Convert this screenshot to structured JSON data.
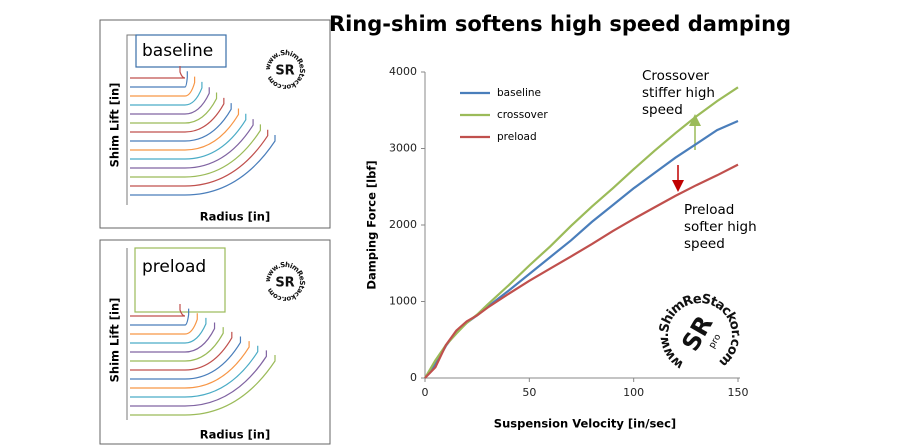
{
  "chart_data": {
    "type": "line",
    "title": "Ring-shim softens high speed damping",
    "x_label": "Suspension Velocity [in/sec]",
    "y_label": "Damping Force [lbf]",
    "x": [
      0,
      5,
      10,
      15,
      20,
      25,
      30,
      40,
      50,
      60,
      70,
      80,
      90,
      100,
      110,
      120,
      130,
      140,
      150
    ],
    "series": [
      {
        "name": "baseline",
        "color": "#4a7ebb",
        "values": [
          0,
          180,
          420,
          600,
          720,
          820,
          930,
          1140,
          1360,
          1580,
          1800,
          2040,
          2260,
          2480,
          2680,
          2880,
          3060,
          3240,
          3360
        ]
      },
      {
        "name": "crossover",
        "color": "#9bbb59",
        "values": [
          0,
          230,
          430,
          580,
          720,
          830,
          960,
          1210,
          1470,
          1720,
          1990,
          2240,
          2480,
          2730,
          2970,
          3200,
          3420,
          3620,
          3800
        ]
      },
      {
        "name": "preload",
        "color": "#c0504d",
        "values": [
          0,
          140,
          430,
          620,
          740,
          820,
          920,
          1100,
          1270,
          1430,
          1590,
          1750,
          1920,
          2080,
          2230,
          2380,
          2520,
          2650,
          2790
        ]
      }
    ],
    "xlim": [
      0,
      150
    ],
    "xticks": [
      0,
      50,
      100,
      150
    ],
    "ylim": [
      0,
      4000
    ],
    "yticks": [
      0,
      1000,
      2000,
      3000,
      4000
    ],
    "grid": false,
    "legend": "upper-left",
    "annotations": [
      {
        "text": [
          "Crossover",
          "stiffer high",
          "speed"
        ]
      },
      {
        "text": [
          "Preload",
          "softer high",
          "speed"
        ]
      }
    ]
  },
  "insets": [
    {
      "label": "baseline",
      "y_label": "Shim Lift [in]",
      "x_label": "Radius [in]"
    },
    {
      "label": "preload",
      "y_label": "Shim Lift [in]",
      "x_label": "Radius [in]"
    }
  ],
  "watermark": {
    "text": "www.ShimReStackor.com",
    "logo": "SR",
    "badge": "pro"
  }
}
